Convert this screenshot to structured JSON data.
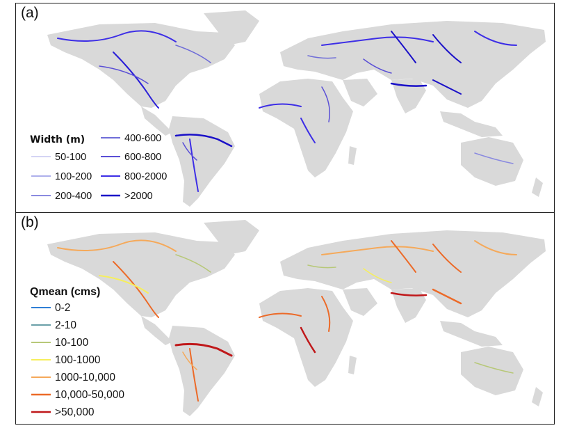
{
  "panel_a": {
    "label": "(a)",
    "legend_title": "Width (m)",
    "legend": [
      {
        "label": "50-100",
        "color": "#d4d4f4"
      },
      {
        "label": "100-200",
        "color": "#aeb0ec"
      },
      {
        "label": "200-400",
        "color": "#8a8ae0"
      },
      {
        "label": "400-600",
        "color": "#6f6dd8"
      },
      {
        "label": "600-800",
        "color": "#5a4fd6"
      },
      {
        "label": "800-2000",
        "color": "#3d2ee6"
      },
      {
        "label": ">2000",
        "color": "#1a10c8"
      }
    ]
  },
  "panel_b": {
    "label": "(b)",
    "legend_title": "Qmean (cms)",
    "legend": [
      {
        "label": "0-2",
        "color": "#2f7fd6"
      },
      {
        "label": "2-10",
        "color": "#6aa0a8"
      },
      {
        "label": "10-100",
        "color": "#b7c878"
      },
      {
        "label": "100-1000",
        "color": "#f6ef5c"
      },
      {
        "label": "1000-10,000",
        "color": "#f5a95a"
      },
      {
        "label": "10,000-50,000",
        "color": "#ec6a28"
      },
      {
        "label": ">50,000",
        "color": "#c0181a"
      }
    ]
  },
  "land_color": "#d9d9d9"
}
